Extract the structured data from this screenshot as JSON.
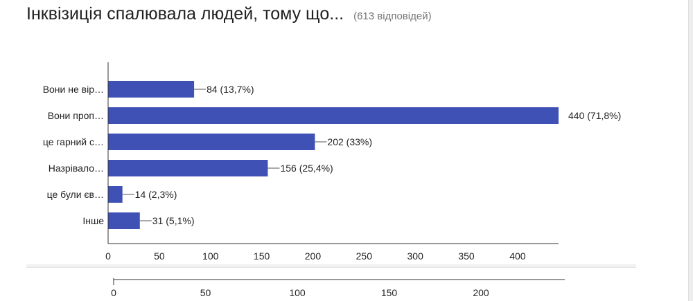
{
  "header": {
    "title": "Інквізиція спалювала людей, тому що...",
    "responses": "(613 відповідей)"
  },
  "colors": {
    "bar": "#3f51b5",
    "axis": "#333333",
    "leader": "#555555"
  },
  "chart_data": {
    "type": "bar",
    "orientation": "horizontal",
    "categories": [
      "Вони не вір…",
      "Вони проп…",
      "це гарний с…",
      "Назрівало…",
      "це були єв…",
      "Інше"
    ],
    "values": [
      84,
      440,
      202,
      156,
      14,
      31
    ],
    "value_labels": [
      "84 (13,7%)",
      "440 (71,8%)",
      "202 (33%)",
      "156 (25,4%)",
      "14 (2,3%)",
      "31 (5,1%)"
    ],
    "xlim": [
      0,
      440
    ],
    "xticks": [
      0,
      50,
      100,
      150,
      200,
      250,
      300,
      350,
      400
    ],
    "grid": false,
    "secondary_axis": {
      "xlim": [
        0,
        240
      ],
      "xticks": [
        0,
        50,
        100,
        150,
        200
      ]
    }
  }
}
